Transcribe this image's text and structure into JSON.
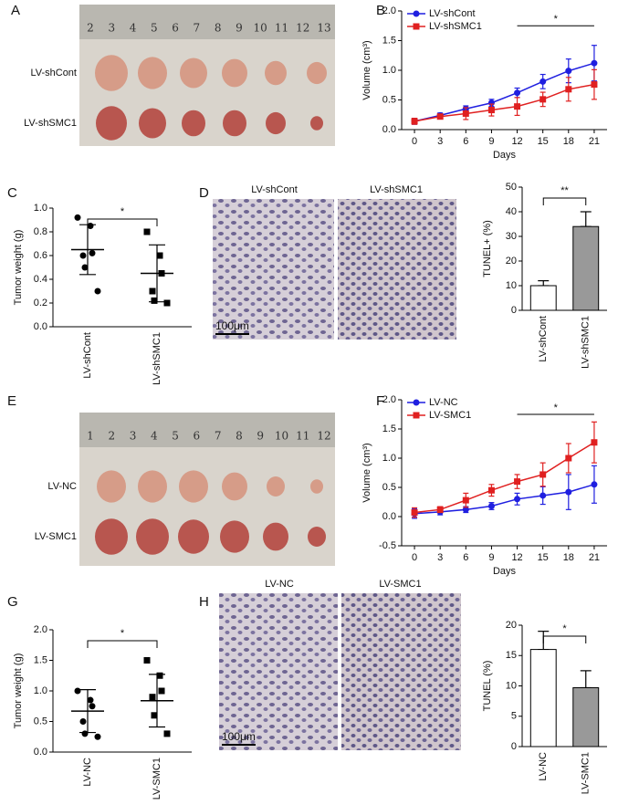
{
  "panel_labels": [
    "A",
    "B",
    "C",
    "D",
    "E",
    "F",
    "G",
    "H"
  ],
  "photos": [
    {
      "ruler": [
        "2",
        "3",
        "4",
        "5",
        "6",
        "7",
        "8",
        "9",
        "10",
        "11",
        "12",
        "13"
      ],
      "rows": [
        "LV-shCont",
        "LV-shSMC1"
      ]
    },
    {
      "columns": [
        "LV-shCont",
        "LV-shSMC1"
      ],
      "scale": "100μm"
    },
    {
      "ruler": [
        "1",
        "2",
        "3",
        "4",
        "5",
        "6",
        "7",
        "8",
        "9",
        "10",
        "11",
        "12"
      ],
      "rows": [
        "LV-NC",
        "LV-SMC1"
      ]
    },
    {
      "columns": [
        "LV-NC",
        "LV-SMC1"
      ],
      "scale": "100μm"
    }
  ],
  "chart_data": [
    {
      "type": "line",
      "xlabel": "Days",
      "ylabel": "Volume (cm³)",
      "x": [
        0,
        3,
        6,
        9,
        12,
        15,
        18,
        21
      ],
      "xlim": [
        -1.5,
        22.5
      ],
      "xticks": [
        0,
        3,
        6,
        9,
        12,
        15,
        18,
        21
      ],
      "ylim": [
        0,
        2
      ],
      "yticks": [
        {
          "value": 0,
          "label": "0.0"
        },
        {
          "value": 0.5,
          "label": "0.5"
        },
        {
          "value": 1,
          "label": "1.0"
        },
        {
          "value": 1.5,
          "label": "1.5"
        },
        {
          "value": 2,
          "label": "2.0"
        }
      ],
      "legend": "upper left",
      "series": [
        {
          "name": "LV-shCont",
          "color": "#1f1fe0",
          "marker": "circle",
          "values": [
            0.14,
            0.24,
            0.35,
            0.45,
            0.62,
            0.81,
            0.99,
            1.12
          ],
          "errors": [
            0.05,
            0.04,
            0.05,
            0.06,
            0.08,
            0.12,
            0.2,
            0.3
          ]
        },
        {
          "name": "LV-shSMC1",
          "color": "#e02020",
          "marker": "square",
          "values": [
            0.14,
            0.22,
            0.27,
            0.33,
            0.39,
            0.51,
            0.68,
            0.76
          ],
          "errors": [
            0.05,
            0.04,
            0.1,
            0.1,
            0.15,
            0.12,
            0.2,
            0.25
          ]
        }
      ],
      "significance": {
        "text": "*",
        "x": [
          12,
          21
        ],
        "y": 1.75
      }
    },
    {
      "type": "dot",
      "ylabel": "Tumor weight (g)",
      "categories": [
        "LV-shCont",
        "LV-shSMC1"
      ],
      "markers": [
        "circle",
        "square"
      ],
      "points": [
        [
          0.92,
          0.85,
          0.62,
          0.6,
          0.5,
          0.3
        ],
        [
          0.8,
          0.6,
          0.45,
          0.3,
          0.22,
          0.2
        ]
      ],
      "means": [
        0.65,
        0.45
      ],
      "errors": [
        0.21,
        0.24
      ],
      "ylim": [
        0,
        1
      ],
      "yticks": [
        {
          "value": 0,
          "label": "0.0"
        },
        {
          "value": 0.2,
          "label": "0.2"
        },
        {
          "value": 0.4,
          "label": "0.4"
        },
        {
          "value": 0.6,
          "label": "0.6"
        },
        {
          "value": 0.8,
          "label": "0.8"
        },
        {
          "value": 1,
          "label": "1.0"
        }
      ],
      "significance": {
        "text": "*"
      }
    },
    {
      "type": "bar",
      "ylabel": "TUNEL+ (%)",
      "categories": [
        "LV-shCont",
        "LV-shSMC1"
      ],
      "colors": [
        "#ffffff",
        "#999999"
      ],
      "values": [
        10,
        34
      ],
      "errors": [
        2,
        6
      ],
      "ylim": [
        0,
        50
      ],
      "yticks": [
        0,
        10,
        20,
        30,
        40,
        50
      ],
      "significance": {
        "text": "**"
      }
    },
    {
      "type": "line",
      "xlabel": "Days",
      "ylabel": "Volume (cm³)",
      "x": [
        0,
        3,
        6,
        9,
        12,
        15,
        18,
        21
      ],
      "xlim": [
        -1.5,
        22.5
      ],
      "xticks": [
        0,
        3,
        6,
        9,
        12,
        15,
        18,
        21
      ],
      "ylim": [
        -0.5,
        2
      ],
      "yticks": [
        {
          "value": -0.5,
          "label": "-0.5"
        },
        {
          "value": 0,
          "label": "0.0"
        },
        {
          "value": 0.5,
          "label": "0.5"
        },
        {
          "value": 1,
          "label": "1.0"
        },
        {
          "value": 1.5,
          "label": "1.5"
        },
        {
          "value": 2,
          "label": "2.0"
        }
      ],
      "legend": "upper left",
      "series": [
        {
          "name": "LV-NC",
          "color": "#1f1fe0",
          "marker": "circle",
          "values": [
            0.05,
            0.08,
            0.12,
            0.18,
            0.3,
            0.36,
            0.42,
            0.55
          ],
          "errors": [
            0.08,
            0.05,
            0.05,
            0.06,
            0.1,
            0.15,
            0.3,
            0.32
          ]
        },
        {
          "name": "LV-SMC1",
          "color": "#e02020",
          "marker": "square",
          "values": [
            0.07,
            0.12,
            0.28,
            0.45,
            0.6,
            0.72,
            1.0,
            1.27
          ],
          "errors": [
            0.08,
            0.05,
            0.12,
            0.1,
            0.12,
            0.2,
            0.25,
            0.35
          ]
        }
      ],
      "significance": {
        "text": "*",
        "x": [
          12,
          21
        ],
        "y": 1.75
      }
    },
    {
      "type": "dot",
      "ylabel": "Tumor weight (g)",
      "categories": [
        "LV-NC",
        "LV-SMC1"
      ],
      "markers": [
        "circle",
        "square"
      ],
      "points": [
        [
          1.0,
          0.85,
          0.75,
          0.5,
          0.3,
          0.25
        ],
        [
          1.5,
          1.25,
          1.0,
          0.9,
          0.6,
          0.3
        ]
      ],
      "means": [
        0.67,
        0.84
      ],
      "errors": [
        0.35,
        0.43
      ],
      "ylim": [
        0,
        2
      ],
      "yticks": [
        {
          "value": 0,
          "label": "0.0"
        },
        {
          "value": 0.5,
          "label": "0.5"
        },
        {
          "value": 1,
          "label": "1.0"
        },
        {
          "value": 1.5,
          "label": "1.5"
        },
        {
          "value": 2,
          "label": "2.0"
        }
      ],
      "significance": {
        "text": "*"
      }
    },
    {
      "type": "bar",
      "ylabel": "TUNEL (%)",
      "categories": [
        "LV-NC",
        "LV-SMC1"
      ],
      "colors": [
        "#ffffff",
        "#999999"
      ],
      "values": [
        16,
        9.7
      ],
      "errors": [
        3,
        2.8
      ],
      "ylim": [
        0,
        20
      ],
      "yticks": [
        0,
        5,
        10,
        15,
        20
      ],
      "significance": {
        "text": "*"
      }
    }
  ]
}
